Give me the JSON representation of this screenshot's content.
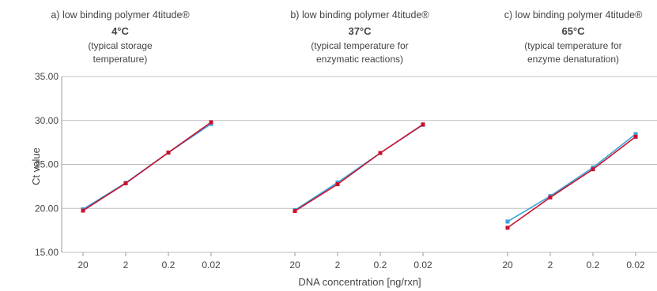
{
  "chart_data": {
    "type": "line",
    "ylabel": "Ct value",
    "xlabel": "DNA concentration [ng/rxn]",
    "ylim": [
      15,
      35
    ],
    "yticks": [
      "15.00",
      "20.00",
      "25.00",
      "30.00",
      "35.00"
    ],
    "categories": [
      "20",
      "2",
      "0.2",
      "0.02"
    ],
    "grid": "horizontal",
    "colors": {
      "blue": "#3aa3d8",
      "red": "#c8102e",
      "grid": "#bfbfbf"
    },
    "panels": [
      {
        "title": "a) low binding polymer 4titude®",
        "temperature": "4°C",
        "note_line1": "(typical storage",
        "note_line2": "temperature)",
        "series": [
          {
            "color": "blue",
            "values": [
              19.9,
              22.9,
              26.35,
              29.6
            ]
          },
          {
            "color": "red",
            "values": [
              19.75,
              22.85,
              26.35,
              29.8
            ]
          }
        ]
      },
      {
        "title": "b) low binding polymer 4titude®",
        "temperature": "37°C",
        "note_line1": "(typical temperature for",
        "note_line2": "enzymatic reactions)",
        "series": [
          {
            "color": "blue",
            "values": [
              19.8,
              22.95,
              26.3,
              29.5
            ]
          },
          {
            "color": "red",
            "values": [
              19.7,
              22.75,
              26.3,
              29.55
            ]
          }
        ]
      },
      {
        "title": "c) low binding polymer 4titude®",
        "temperature": "65°C",
        "note_line1": "(typical temperature for",
        "note_line2": "enzyme denaturation)",
        "series": [
          {
            "color": "blue",
            "values": [
              18.5,
              21.4,
              24.65,
              28.45
            ]
          },
          {
            "color": "red",
            "values": [
              17.8,
              21.25,
              24.45,
              28.15
            ]
          }
        ]
      }
    ]
  }
}
